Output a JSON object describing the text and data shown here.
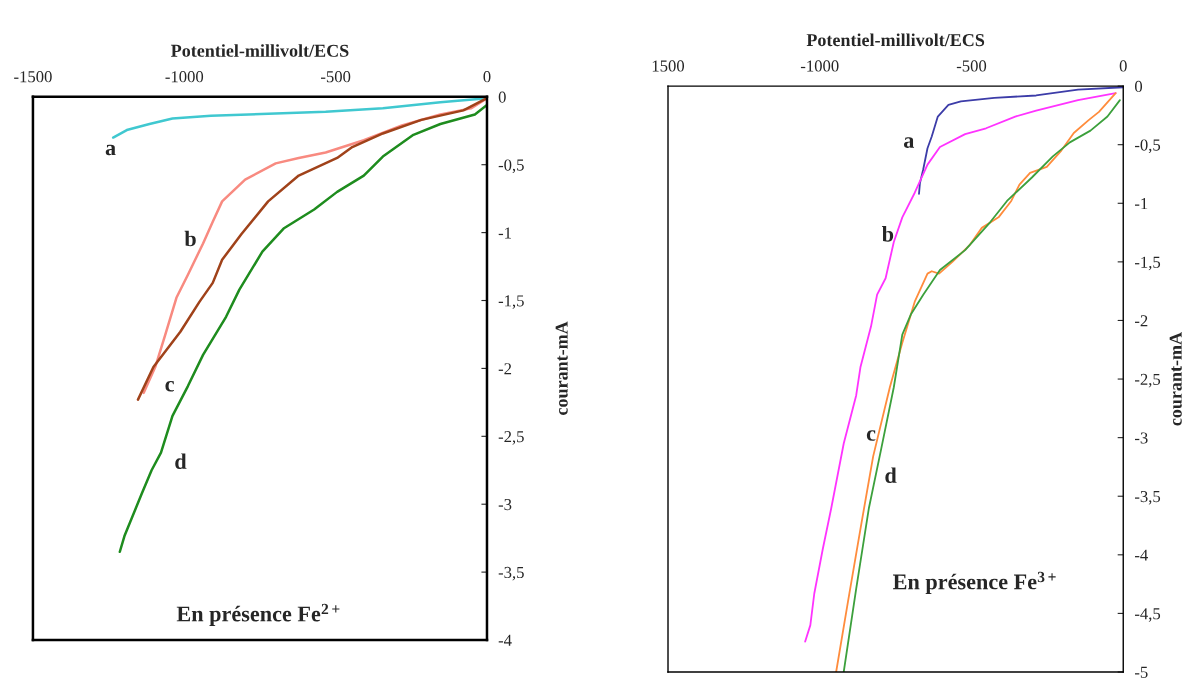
{
  "chart_data": [
    {
      "type": "line",
      "xlabel": "Potentiel-millivolt/ECS",
      "ylabel": "courant-mA",
      "xlim": [
        -1500,
        0
      ],
      "ylim": [
        -4,
        0
      ],
      "xticks": [
        -1500,
        -1000,
        -500,
        0
      ],
      "yticks": [
        0,
        {
          "value": -0.5,
          "label": "-0,5"
        },
        -1,
        {
          "value": -1.5,
          "label": "-1,5"
        },
        -2,
        {
          "value": -2.5,
          "label": "-2,5"
        },
        -3,
        {
          "value": -3.5,
          "label": "-3,5"
        },
        -4
      ],
      "grid": false,
      "line_style": "solid",
      "marker": "none",
      "series": [
        {
          "color": "#40c8d0",
          "x": [
            -1235,
            -1190,
            -1115,
            -1039,
            -912,
            -533,
            -344,
            -154,
            0
          ],
          "values": [
            -0.3,
            -0.245,
            -0.2,
            -0.16,
            -0.14,
            -0.11,
            -0.085,
            -0.04,
            -0.01
          ]
        },
        {
          "color": "#f88a80",
          "x": [
            -1134,
            -1096,
            -1064,
            -1026,
            -988,
            -938,
            -906,
            -875,
            -799,
            -698,
            -622,
            -533,
            -407,
            -281,
            -154,
            -53,
            0
          ],
          "values": [
            -2.18,
            -1.99,
            -1.76,
            -1.48,
            -1.31,
            -1.08,
            -0.92,
            -0.77,
            -0.61,
            -0.49,
            -0.45,
            -0.41,
            -0.32,
            -0.21,
            -0.13,
            -0.085,
            -0.01
          ]
        },
        {
          "color": "#a0421a",
          "x": [
            -1153,
            -1102,
            -1013,
            -950,
            -906,
            -875,
            -811,
            -723,
            -622,
            -495,
            -445,
            -344,
            -217,
            -78,
            0
          ],
          "values": [
            -2.23,
            -1.99,
            -1.73,
            -1.51,
            -1.37,
            -1.2,
            -1.01,
            -0.77,
            -0.58,
            -0.45,
            -0.37,
            -0.27,
            -0.17,
            -0.1,
            -0.01
          ]
        },
        {
          "color": "#1e8c1e",
          "x": [
            -1213,
            -1197,
            -1140,
            -1108,
            -1077,
            -1039,
            -988,
            -938,
            -862,
            -818,
            -742,
            -672,
            -571,
            -495,
            -407,
            -344,
            -243,
            -154,
            -40,
            0
          ],
          "values": [
            -3.35,
            -3.23,
            -2.92,
            -2.75,
            -2.62,
            -2.35,
            -2.13,
            -1.9,
            -1.62,
            -1.42,
            -1.14,
            -0.97,
            -0.83,
            -0.7,
            -0.58,
            -0.44,
            -0.28,
            -0.2,
            -0.13,
            -0.06
          ]
        }
      ],
      "annotations": [
        "a",
        "b",
        "c",
        "d",
        "En présence Fe$^{2+}$"
      ]
    },
    {
      "type": "line",
      "xlabel": "Potentiel-millivolt/ECS",
      "ylabel": "courant-mA",
      "xlim": [
        -1500,
        0
      ],
      "ylim": [
        -5,
        0
      ],
      "xticks": [
        {
          "value": -1500,
          "label": "1500"
        },
        -1000,
        -500,
        0
      ],
      "yticks": [
        0,
        {
          "value": -0.5,
          "label": "-0,5"
        },
        -1,
        {
          "value": -1.5,
          "label": "-1,5"
        },
        -2,
        {
          "value": -2.5,
          "label": "-2,5"
        },
        -3,
        {
          "value": -3.5,
          "label": "-3,5"
        },
        -4,
        {
          "value": -4.5,
          "label": "-4,5"
        },
        -5
      ],
      "grid": false,
      "line_style": "solid",
      "marker": "none",
      "series": [
        {
          "color": "#3c3ca8",
          "x": [
            -673,
            -670,
            -659,
            -645,
            -631,
            -611,
            -576,
            -535,
            -425,
            -287,
            -149,
            0
          ],
          "values": [
            -0.92,
            -0.83,
            -0.71,
            -0.53,
            -0.43,
            -0.26,
            -0.16,
            -0.13,
            -0.1,
            -0.08,
            -0.03,
            -0.01
          ]
        },
        {
          "color": "#ff33ff",
          "x": [
            -1048,
            -1031,
            -1018,
            -990,
            -962,
            -921,
            -880,
            -866,
            -831,
            -811,
            -783,
            -756,
            -728,
            -687,
            -645,
            -604,
            -521,
            -452,
            -356,
            -287,
            -149,
            -25
          ],
          "values": [
            -4.74,
            -4.6,
            -4.33,
            -3.95,
            -3.6,
            -3.05,
            -2.64,
            -2.4,
            -2.05,
            -1.78,
            -1.64,
            -1.33,
            -1.12,
            -0.91,
            -0.67,
            -0.52,
            -0.41,
            -0.36,
            -0.26,
            -0.21,
            -0.12,
            -0.06
          ]
        },
        {
          "color": "#ff8c3c",
          "x": [
            -946,
            -907,
            -866,
            -824,
            -769,
            -728,
            -687,
            -645,
            -631,
            -607,
            -563,
            -507,
            -466,
            -411,
            -369,
            -342,
            -307,
            -252,
            -204,
            -163,
            -114,
            -80,
            -25
          ],
          "values": [
            -5.0,
            -4.4,
            -3.78,
            -3.16,
            -2.57,
            -2.19,
            -1.84,
            -1.6,
            -1.58,
            -1.6,
            -1.5,
            -1.36,
            -1.21,
            -1.12,
            -0.98,
            -0.84,
            -0.74,
            -0.69,
            -0.55,
            -0.4,
            -0.29,
            -0.22,
            -0.06
          ]
        },
        {
          "color": "#3ca03c",
          "x": [
            -921,
            -880,
            -838,
            -797,
            -756,
            -728,
            -700,
            -659,
            -604,
            -521,
            -438,
            -383,
            -301,
            -232,
            -176,
            -108,
            -52,
            -11
          ],
          "values": [
            -5.0,
            -4.29,
            -3.6,
            -3.09,
            -2.57,
            -2.12,
            -1.95,
            -1.78,
            -1.57,
            -1.4,
            -1.16,
            -0.98,
            -0.78,
            -0.6,
            -0.48,
            -0.38,
            -0.26,
            -0.12
          ]
        }
      ],
      "annotations": [
        "a",
        "b",
        "c",
        "d",
        "En présence Fe$^{3+}$"
      ]
    }
  ]
}
